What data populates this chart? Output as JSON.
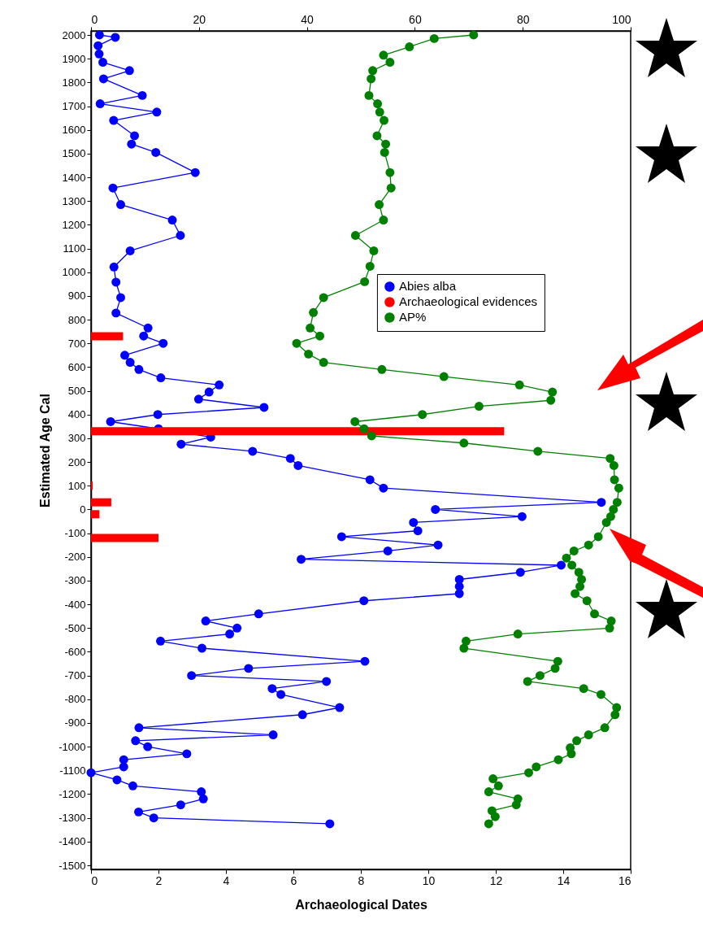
{
  "chart_data": {
    "type": "line",
    "orientation": "horizontal",
    "xlabel": "Archaeological Dates",
    "ylabel": "Estimated Age Cal",
    "xlim": [
      0,
      16
    ],
    "xticks": [
      0,
      2,
      4,
      6,
      8,
      10,
      12,
      14,
      16
    ],
    "x2lim": [
      0,
      100
    ],
    "x2ticks": [
      0,
      20,
      40,
      60,
      80,
      100
    ],
    "ylim": [
      -1500,
      2000
    ],
    "yticks": [
      -1500,
      -1400,
      -1300,
      -1200,
      -1100,
      -1000,
      -900,
      -800,
      -700,
      -600,
      -500,
      -400,
      -300,
      -200,
      -100,
      0,
      100,
      200,
      300,
      400,
      500,
      600,
      700,
      800,
      900,
      1000,
      1100,
      1200,
      1300,
      1400,
      1500,
      1600,
      1700,
      1800,
      1900,
      2000
    ],
    "grid": false,
    "legend": "right",
    "marker": "circle",
    "line_style": "solid",
    "series": [
      {
        "name": "Abies alba",
        "color": "#0000ff",
        "x": [
          2000,
          1990,
          1955,
          1920,
          1885,
          1850,
          1815,
          1745,
          1710,
          1675,
          1640,
          1575,
          1540,
          1505,
          1420,
          1355,
          1285,
          1220,
          1155,
          1090,
          1022,
          958,
          893,
          828,
          765,
          731,
          700,
          650,
          620,
          590,
          555,
          525,
          495,
          465,
          430,
          400,
          370,
          340,
          305,
          275,
          245,
          215,
          185,
          125,
          90,
          30,
          0,
          -30,
          -55,
          -90,
          -115,
          -150,
          -175,
          -210,
          -235,
          -265,
          -295,
          -325,
          -355,
          -385,
          -440,
          -470,
          -500,
          -525,
          -555,
          -585,
          -640,
          -670,
          -700,
          -725,
          -755,
          -780,
          -835,
          -865,
          -920,
          -950,
          -975,
          -1000,
          -1030,
          -1055,
          -1085,
          -1110,
          -1140,
          -1165,
          -1190,
          -1220,
          -1245,
          -1275,
          -1300,
          -1325
        ],
        "values": [
          0.25,
          0.72,
          0.21,
          0.24,
          0.35,
          1.14,
          0.37,
          1.52,
          0.27,
          1.95,
          0.67,
          1.29,
          1.2,
          1.92,
          3.09,
          0.65,
          0.88,
          2.41,
          2.65,
          1.16,
          0.68,
          0.74,
          0.88,
          0.74,
          1.69,
          1.56,
          2.14,
          1.0,
          1.16,
          1.42,
          2.07,
          3.8,
          3.5,
          3.19,
          5.13,
          1.98,
          0.58,
          2.0,
          3.55,
          2.67,
          4.79,
          5.91,
          6.14,
          8.27,
          8.67,
          15.13,
          10.21,
          12.78,
          9.56,
          9.69,
          7.43,
          10.29,
          8.8,
          6.23,
          13.94,
          12.73,
          10.92,
          10.92,
          10.92,
          8.09,
          4.97,
          3.4,
          4.33,
          4.11,
          2.06,
          3.29,
          8.12,
          4.67,
          2.98,
          6.98,
          5.37,
          5.63,
          7.37,
          6.27,
          1.42,
          5.4,
          1.32,
          1.68,
          2.84,
          0.97,
          0.97,
          0.0,
          0.77,
          1.24,
          3.27,
          3.33,
          2.66,
          1.41,
          1.86,
          7.08
        ]
      },
      {
        "name": "Archaeological evidences",
        "type": "bar",
        "color": "#ff0000",
        "x": [
          730,
          330,
          100,
          30,
          -20,
          -120
        ],
        "values": [
          0.95,
          12.25,
          0.05,
          0.6,
          0.25,
          2.0
        ]
      },
      {
        "name": "AP%",
        "axis": "x2",
        "color": "#008000",
        "x": [
          2000,
          1985,
          1950,
          1915,
          1885,
          1850,
          1815,
          1745,
          1710,
          1675,
          1640,
          1575,
          1540,
          1505,
          1420,
          1355,
          1285,
          1220,
          1155,
          1090,
          1025,
          960,
          893,
          830,
          765,
          731,
          700,
          655,
          620,
          590,
          560,
          525,
          495,
          460,
          435,
          400,
          370,
          340,
          310,
          280,
          245,
          215,
          185,
          125,
          90,
          30,
          0,
          -30,
          -55,
          -115,
          -150,
          -175,
          -205,
          -235,
          -265,
          -295,
          -325,
          -355,
          -385,
          -440,
          -470,
          -500,
          -525,
          -555,
          -585,
          -640,
          -670,
          -700,
          -725,
          -755,
          -780,
          -835,
          -865,
          -920,
          -950,
          -975,
          -1005,
          -1030,
          -1055,
          -1085,
          -1110,
          -1135,
          -1165,
          -1190,
          -1220,
          -1245,
          -1270,
          -1295,
          -1325
        ],
        "values": [
          70.9,
          63.6,
          59.0,
          54.2,
          55.4,
          52.2,
          51.9,
          51.5,
          53.1,
          53.5,
          54.3,
          53.0,
          54.6,
          54.4,
          55.4,
          55.6,
          53.4,
          54.2,
          49.0,
          52.4,
          51.7,
          50.7,
          43.1,
          41.2,
          40.6,
          42.4,
          38.1,
          40.3,
          43.1,
          53.9,
          65.4,
          79.4,
          85.5,
          85.2,
          71.9,
          61.4,
          48.9,
          50.6,
          52.0,
          69.1,
          82.8,
          96.2,
          96.9,
          97.0,
          97.8,
          97.5,
          96.8,
          96.3,
          95.5,
          94.0,
          92.2,
          89.5,
          88.1,
          89.1,
          90.4,
          90.9,
          90.6,
          89.7,
          91.9,
          93.3,
          96.4,
          96.1,
          79.1,
          69.5,
          69.1,
          86.5,
          86.0,
          83.2,
          80.9,
          91.3,
          94.5,
          97.4,
          97.1,
          95.2,
          92.2,
          90.0,
          88.8,
          89.0,
          86.6,
          82.5,
          81.1,
          74.5,
          75.5,
          73.7,
          79.1,
          78.8,
          74.3,
          74.9,
          73.7
        ]
      }
    ]
  }
}
